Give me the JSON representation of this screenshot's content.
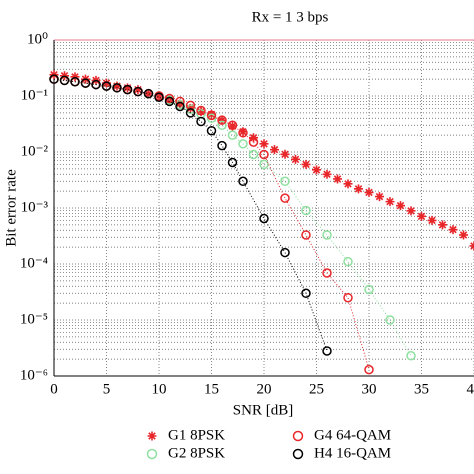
{
  "chart_data": {
    "type": "line",
    "title": "Rx = 1    3 bps",
    "xlabel": "SNR [dB]",
    "ylabel": "Bit error rate",
    "log_y": true,
    "grid": true,
    "legend_position": "bottom",
    "xlim": [
      0,
      40
    ],
    "xticks": [
      0,
      5,
      10,
      15,
      20,
      25,
      30,
      35,
      40
    ],
    "ylim": [
      1e-06,
      1
    ],
    "yticks": [
      {
        "value": 1e-06,
        "label": "10⁻⁶"
      },
      {
        "value": 1e-05,
        "label": "10⁻⁵"
      },
      {
        "value": 0.0001,
        "label": "10⁻⁴"
      },
      {
        "value": 0.001,
        "label": "10⁻³"
      },
      {
        "value": 0.01,
        "label": "10⁻²"
      },
      {
        "value": 0.1,
        "label": "10⁻¹"
      },
      {
        "value": 1,
        "label": "10⁰"
      }
    ],
    "series": [
      {
        "name": "G1 8PSK",
        "color": "#e8262a",
        "marker": "asterisk",
        "x": [
          0,
          1,
          2,
          3,
          4,
          5,
          6,
          7,
          8,
          9,
          10,
          11,
          12,
          13,
          14,
          15,
          16,
          17,
          18,
          19,
          20,
          21,
          22,
          23,
          24,
          25,
          26,
          27,
          28,
          29,
          30,
          31,
          32,
          33,
          34,
          35,
          36,
          37,
          38,
          39,
          40
        ],
        "values": [
          0.24,
          0.23,
          0.22,
          0.2,
          0.19,
          0.17,
          0.15,
          0.14,
          0.13,
          0.11,
          0.1,
          0.085,
          0.072,
          0.06,
          0.053,
          0.047,
          0.037,
          0.029,
          0.023,
          0.018,
          0.014,
          0.011,
          0.0091,
          0.0074,
          0.006,
          0.0048,
          0.004,
          0.0033,
          0.0027,
          0.0022,
          0.0019,
          0.0016,
          0.0013,
          0.0011,
          0.00089,
          0.00071,
          0.0006,
          0.0005,
          0.00041,
          0.00033,
          0.00021
        ]
      },
      {
        "name": "G2 8PSK",
        "color": "#8fe0a0",
        "marker": "circle",
        "x": [
          0,
          1,
          2,
          3,
          4,
          5,
          6,
          7,
          8,
          9,
          10,
          11,
          12,
          13,
          14,
          15,
          16,
          17,
          18,
          19,
          20,
          22,
          24,
          26,
          28,
          30,
          32,
          34
        ],
        "values": [
          0.2,
          0.19,
          0.18,
          0.17,
          0.16,
          0.15,
          0.14,
          0.13,
          0.12,
          0.11,
          0.1,
          0.085,
          0.07,
          0.058,
          0.048,
          0.04,
          0.03,
          0.02,
          0.014,
          0.009,
          0.006,
          0.003,
          0.0009,
          0.00033,
          0.00011,
          3.5e-05,
          1e-05,
          2.3e-06
        ]
      },
      {
        "name": "G4 64-QAM",
        "color": "#e8262a",
        "marker": "circle",
        "x": [
          0,
          1,
          2,
          3,
          4,
          5,
          6,
          7,
          8,
          9,
          10,
          11,
          12,
          13,
          14,
          15,
          16,
          17,
          18,
          19,
          20,
          22,
          24,
          26,
          28,
          30
        ],
        "values": [
          0.2,
          0.19,
          0.18,
          0.17,
          0.16,
          0.15,
          0.14,
          0.13,
          0.12,
          0.11,
          0.1,
          0.09,
          0.08,
          0.068,
          0.055,
          0.045,
          0.037,
          0.03,
          0.022,
          0.015,
          0.009,
          0.0015,
          0.00033,
          6.9e-05,
          2.5e-05,
          1.3e-06
        ]
      },
      {
        "name": "H4 16-QAM",
        "color": "#000000",
        "marker": "circle",
        "x": [
          0,
          1,
          2,
          3,
          4,
          5,
          6,
          7,
          8,
          9,
          10,
          11,
          12,
          13,
          14,
          15,
          16,
          17,
          18,
          20,
          22,
          24,
          26
        ],
        "values": [
          0.2,
          0.19,
          0.18,
          0.17,
          0.16,
          0.15,
          0.14,
          0.13,
          0.12,
          0.11,
          0.095,
          0.08,
          0.065,
          0.05,
          0.035,
          0.024,
          0.013,
          0.0065,
          0.003,
          0.00065,
          0.00016,
          3e-05,
          2.8e-06
        ]
      }
    ]
  }
}
